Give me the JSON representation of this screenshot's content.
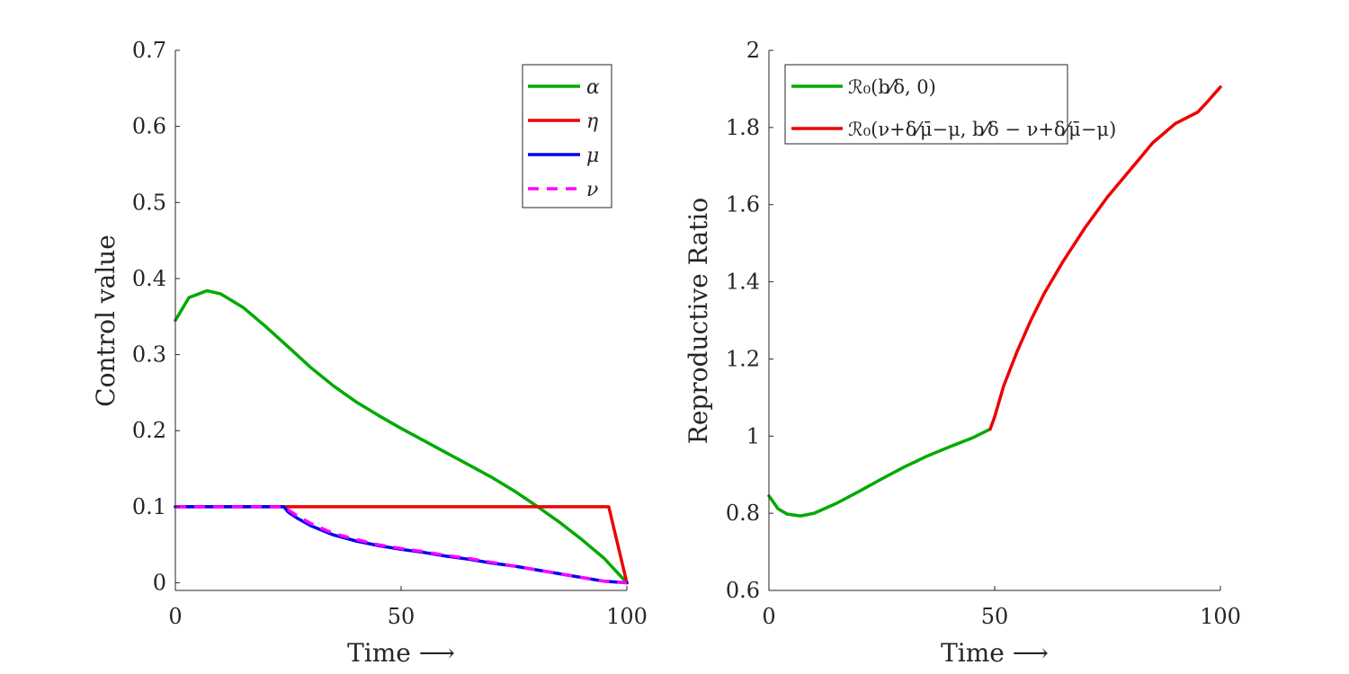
{
  "chart_data": [
    {
      "type": "line",
      "xlabel": "Time ⟶",
      "ylabel": "Control value",
      "xlim": [
        0,
        100
      ],
      "ylim": [
        -0.01,
        0.7
      ],
      "xticks": [
        0,
        50,
        100
      ],
      "yticks": [
        0,
        0.1,
        0.2,
        0.3,
        0.4,
        0.5,
        0.6,
        0.7
      ],
      "ytick_labels": [
        "0",
        "0.1",
        "0.2",
        "0.3",
        "0.4",
        "0.5",
        "0.6",
        "0.7"
      ],
      "legend_position": "top-right",
      "series": [
        {
          "name": "α",
          "color": "#00aa00",
          "dash": false,
          "x": [
            0,
            3,
            7,
            10,
            15,
            20,
            25,
            30,
            35,
            40,
            45,
            50,
            55,
            60,
            65,
            70,
            75,
            80,
            85,
            90,
            95,
            100
          ],
          "y": [
            0.345,
            0.375,
            0.384,
            0.38,
            0.362,
            0.337,
            0.31,
            0.283,
            0.259,
            0.238,
            0.22,
            0.203,
            0.187,
            0.171,
            0.155,
            0.139,
            0.121,
            0.101,
            0.08,
            0.057,
            0.032,
            0.0
          ]
        },
        {
          "name": "η",
          "color": "#ee0000",
          "dash": false,
          "x": [
            0,
            25,
            96,
            100
          ],
          "y": [
            0.1,
            0.1,
            0.1,
            0.0
          ]
        },
        {
          "name": "μ",
          "color": "#0000ee",
          "dash": false,
          "x": [
            0,
            24,
            25,
            27,
            30,
            35,
            40,
            45,
            50,
            55,
            60,
            65,
            70,
            75,
            80,
            85,
            90,
            95,
            100
          ],
          "y": [
            0.1,
            0.1,
            0.093,
            0.085,
            0.075,
            0.063,
            0.055,
            0.049,
            0.044,
            0.04,
            0.035,
            0.031,
            0.026,
            0.022,
            0.017,
            0.012,
            0.007,
            0.002,
            0.0
          ]
        },
        {
          "name": "ν",
          "color": "#ff00ff",
          "dash": true,
          "x": [
            0,
            24,
            25,
            27,
            30,
            35,
            40,
            45,
            50,
            55,
            60,
            65,
            70,
            75,
            80,
            85,
            90,
            95,
            100
          ],
          "y": [
            0.1,
            0.1,
            0.096,
            0.088,
            0.078,
            0.065,
            0.057,
            0.05,
            0.045,
            0.041,
            0.036,
            0.032,
            0.027,
            0.022,
            0.017,
            0.012,
            0.007,
            0.002,
            0.0
          ]
        }
      ]
    },
    {
      "type": "line",
      "xlabel": "Time ⟶",
      "ylabel": "Reproductive Ratio",
      "xlim": [
        0,
        100
      ],
      "ylim": [
        0.6,
        2
      ],
      "xticks": [
        0,
        50,
        100
      ],
      "yticks": [
        0.6,
        0.8,
        1,
        1.2,
        1.4,
        1.6,
        1.8,
        2
      ],
      "ytick_labels": [
        "0.6",
        "0.8",
        "1",
        "1.2",
        "1.4",
        "1.6",
        "1.8",
        "2"
      ],
      "legend_position": "top-left",
      "series": [
        {
          "name": "R0(b/δ, 0)",
          "color": "#00aa00",
          "dash": false,
          "legend_text": "ℛ₀(b⁄δ, 0)",
          "x": [
            0,
            2,
            4,
            7,
            10,
            15,
            20,
            25,
            30,
            35,
            40,
            45,
            49
          ],
          "y": [
            0.845,
            0.812,
            0.798,
            0.793,
            0.8,
            0.826,
            0.857,
            0.889,
            0.92,
            0.948,
            0.972,
            0.995,
            1.018
          ]
        },
        {
          "name": "R0((ν+δ)/(μ̄−μ), b/δ − (ν+δ)/(μ̄−μ))",
          "color": "#ee0000",
          "dash": false,
          "legend_text": "ℛ₀(ν+δ⁄μ̄−μ, b⁄δ − ν+δ⁄μ̄−μ)",
          "x": [
            49,
            50,
            52,
            55,
            58,
            61,
            65,
            70,
            75,
            80,
            85,
            90,
            95,
            97,
            100
          ],
          "y": [
            1.018,
            1.05,
            1.13,
            1.22,
            1.3,
            1.37,
            1.45,
            1.54,
            1.62,
            1.69,
            1.76,
            1.81,
            1.84,
            1.865,
            1.905
          ]
        }
      ]
    }
  ]
}
